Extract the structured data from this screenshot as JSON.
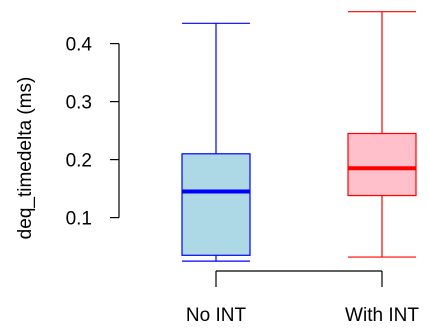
{
  "chart_data": {
    "type": "boxplot",
    "title": "",
    "xlabel": "",
    "ylabel": "deq_timedelta (ms)",
    "ylim": [
      0.0,
      0.47
    ],
    "yticks": [
      0.1,
      0.2,
      0.3,
      0.4
    ],
    "ytick_labels": [
      "0.1",
      "0.2",
      "0.3",
      "0.4"
    ],
    "grid": false,
    "categories": [
      "No INT",
      "With INT"
    ],
    "boxes": [
      {
        "category": "No INT",
        "whisker_low": 0.025,
        "q1": 0.035,
        "median": 0.145,
        "q3": 0.21,
        "whisker_high": 0.435,
        "fill": "#add8e6",
        "stroke": "#0000ff"
      },
      {
        "category": "With INT",
        "whisker_low": 0.032,
        "q1": 0.138,
        "median": 0.185,
        "q3": 0.245,
        "whisker_high": 0.455,
        "fill": "#ffc0cb",
        "stroke": "#ff0000"
      }
    ]
  }
}
